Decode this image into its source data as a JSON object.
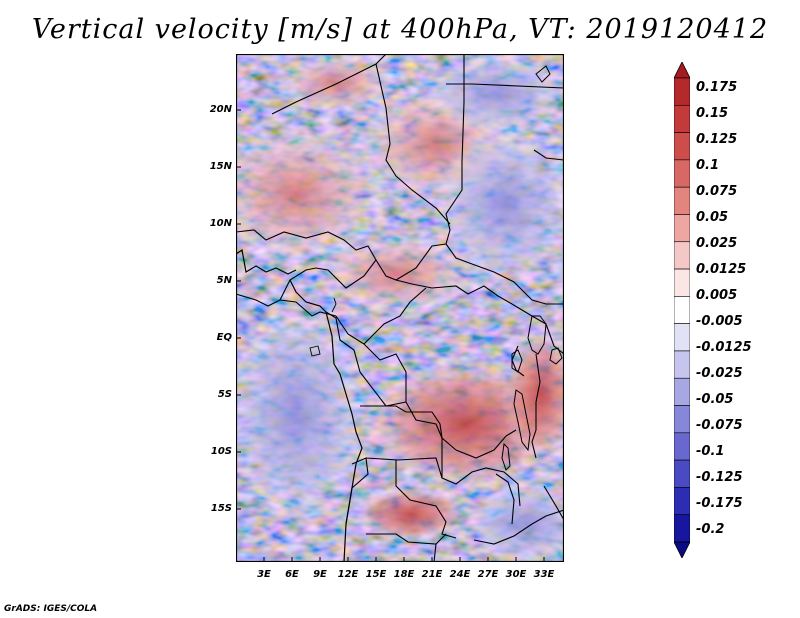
{
  "title": "Vertical velocity [m/s] at 400hPa, VT: 2019120412",
  "footer": "GrADS: IGES/COLA",
  "map": {
    "region": "Central Africa",
    "lat_labels": [
      "20N",
      "15N",
      "10N",
      "5N",
      "EQ",
      "5S",
      "10S",
      "15S"
    ],
    "lon_labels": [
      "3E",
      "6E",
      "9E",
      "12E",
      "15E",
      "18E",
      "21E",
      "24E",
      "27E",
      "30E",
      "33E"
    ]
  },
  "colorbar": {
    "labels": [
      "0.175",
      "0.15",
      "0.125",
      "0.1",
      "0.075",
      "0.05",
      "0.025",
      "0.0125",
      "0.005",
      "-0.005",
      "-0.0125",
      "-0.025",
      "-0.05",
      "-0.075",
      "-0.1",
      "-0.125",
      "-0.175",
      "-0.2"
    ],
    "colors": [
      "#a51b1f",
      "#b42a2a",
      "#c23b3a",
      "#cd4d4a",
      "#d86863",
      "#e3857f",
      "#eda6a2",
      "#f4c8c6",
      "#fae6e5",
      "#ffffff",
      "#e2e2f7",
      "#c5c5ee",
      "#a7a7e4",
      "#8787da",
      "#6868cf",
      "#4a4ac2",
      "#2d2db3",
      "#16169e",
      "#0b0b86"
    ]
  }
}
